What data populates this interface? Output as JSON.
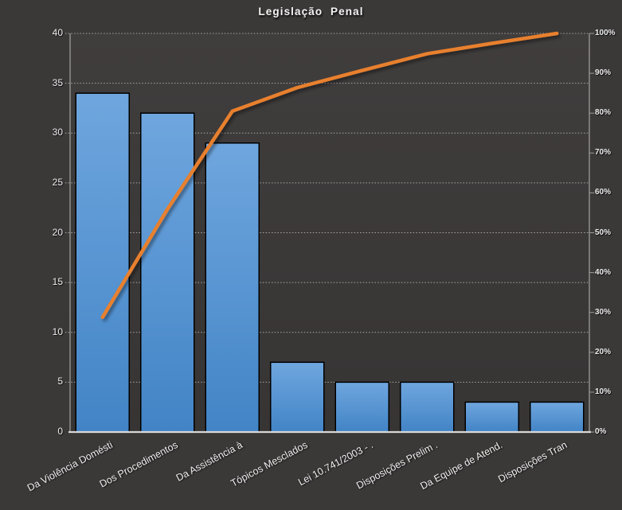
{
  "chart_data": {
    "type": "bar",
    "subtype": "pareto-combo-bar-line",
    "title": "Legislação Penal",
    "categories": [
      "Da Violência Domésti",
      "Dos Procedimentos",
      "Da Assistência à",
      "Tópicos Mesclados",
      "Lei 10.741/2003 - .",
      "Disposições Prelim .",
      "Da Equipe de Atend.",
      "Disposições Tran"
    ],
    "series": [
      {
        "name": "frequency-bars",
        "type": "bar",
        "axis": "left",
        "values": [
          34,
          32,
          29,
          7,
          5,
          5,
          3,
          3
        ]
      },
      {
        "name": "cumulative-percent-line",
        "type": "line",
        "axis": "right",
        "values": [
          28.8,
          55.9,
          80.5,
          86.4,
          90.7,
          94.9,
          97.5,
          100
        ]
      }
    ],
    "left_axis": {
      "min": 0,
      "max": 40,
      "step": 5,
      "tick_labels": [
        "0",
        "5",
        "10",
        "15",
        "20",
        "25",
        "30",
        "35",
        "40"
      ]
    },
    "right_axis": {
      "min": 0,
      "max": 100,
      "step": 10,
      "tick_labels": [
        "0%",
        "10%",
        "20%",
        "30%",
        "40%",
        "50%",
        "60%",
        "70%",
        "80%",
        "90%",
        "100%"
      ]
    },
    "grid": true,
    "legend": "none",
    "colors": {
      "background": "#3B3838",
      "plot_top": "#403D3D",
      "plot_bottom": "#373434",
      "bar_gradient_top": "#6FA6DE",
      "bar_gradient_bottom": "#4284C6",
      "bar_border": "#000000",
      "line": "#E8802E",
      "gridline": "#ACA7A7",
      "axis_line": "#9E9A9A",
      "baseline": "#D8D8D8",
      "text": "#F0F0F0"
    }
  }
}
